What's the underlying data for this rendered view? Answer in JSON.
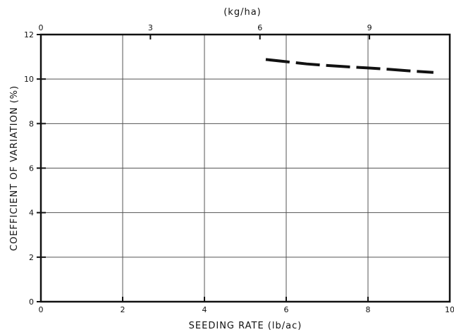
{
  "chart_data": {
    "type": "line",
    "xlabel": "SEEDING RATE (lb/ac)",
    "ylabel": "COEFFICIENT OF VARIATION (%)",
    "top_xlabel": "(kg/ha)",
    "xlim": [
      0,
      10
    ],
    "ylim": [
      0,
      12
    ],
    "x_ticks": [
      0,
      2,
      4,
      6,
      8,
      10
    ],
    "y_ticks": [
      0,
      2,
      4,
      6,
      8,
      10,
      12
    ],
    "top_x_ticks": [
      0,
      3,
      6,
      9
    ],
    "top_x_scale_per_bottom_unit": 1.12,
    "grid": true,
    "series": [
      {
        "line_style": "dashed",
        "color": "#111111",
        "x": [
          5.5,
          6.0,
          6.5,
          7.0,
          7.5,
          8.0,
          8.5,
          9.0,
          9.6
        ],
        "y": [
          10.88,
          10.78,
          10.68,
          10.61,
          10.55,
          10.5,
          10.44,
          10.37,
          10.3
        ]
      }
    ]
  }
}
